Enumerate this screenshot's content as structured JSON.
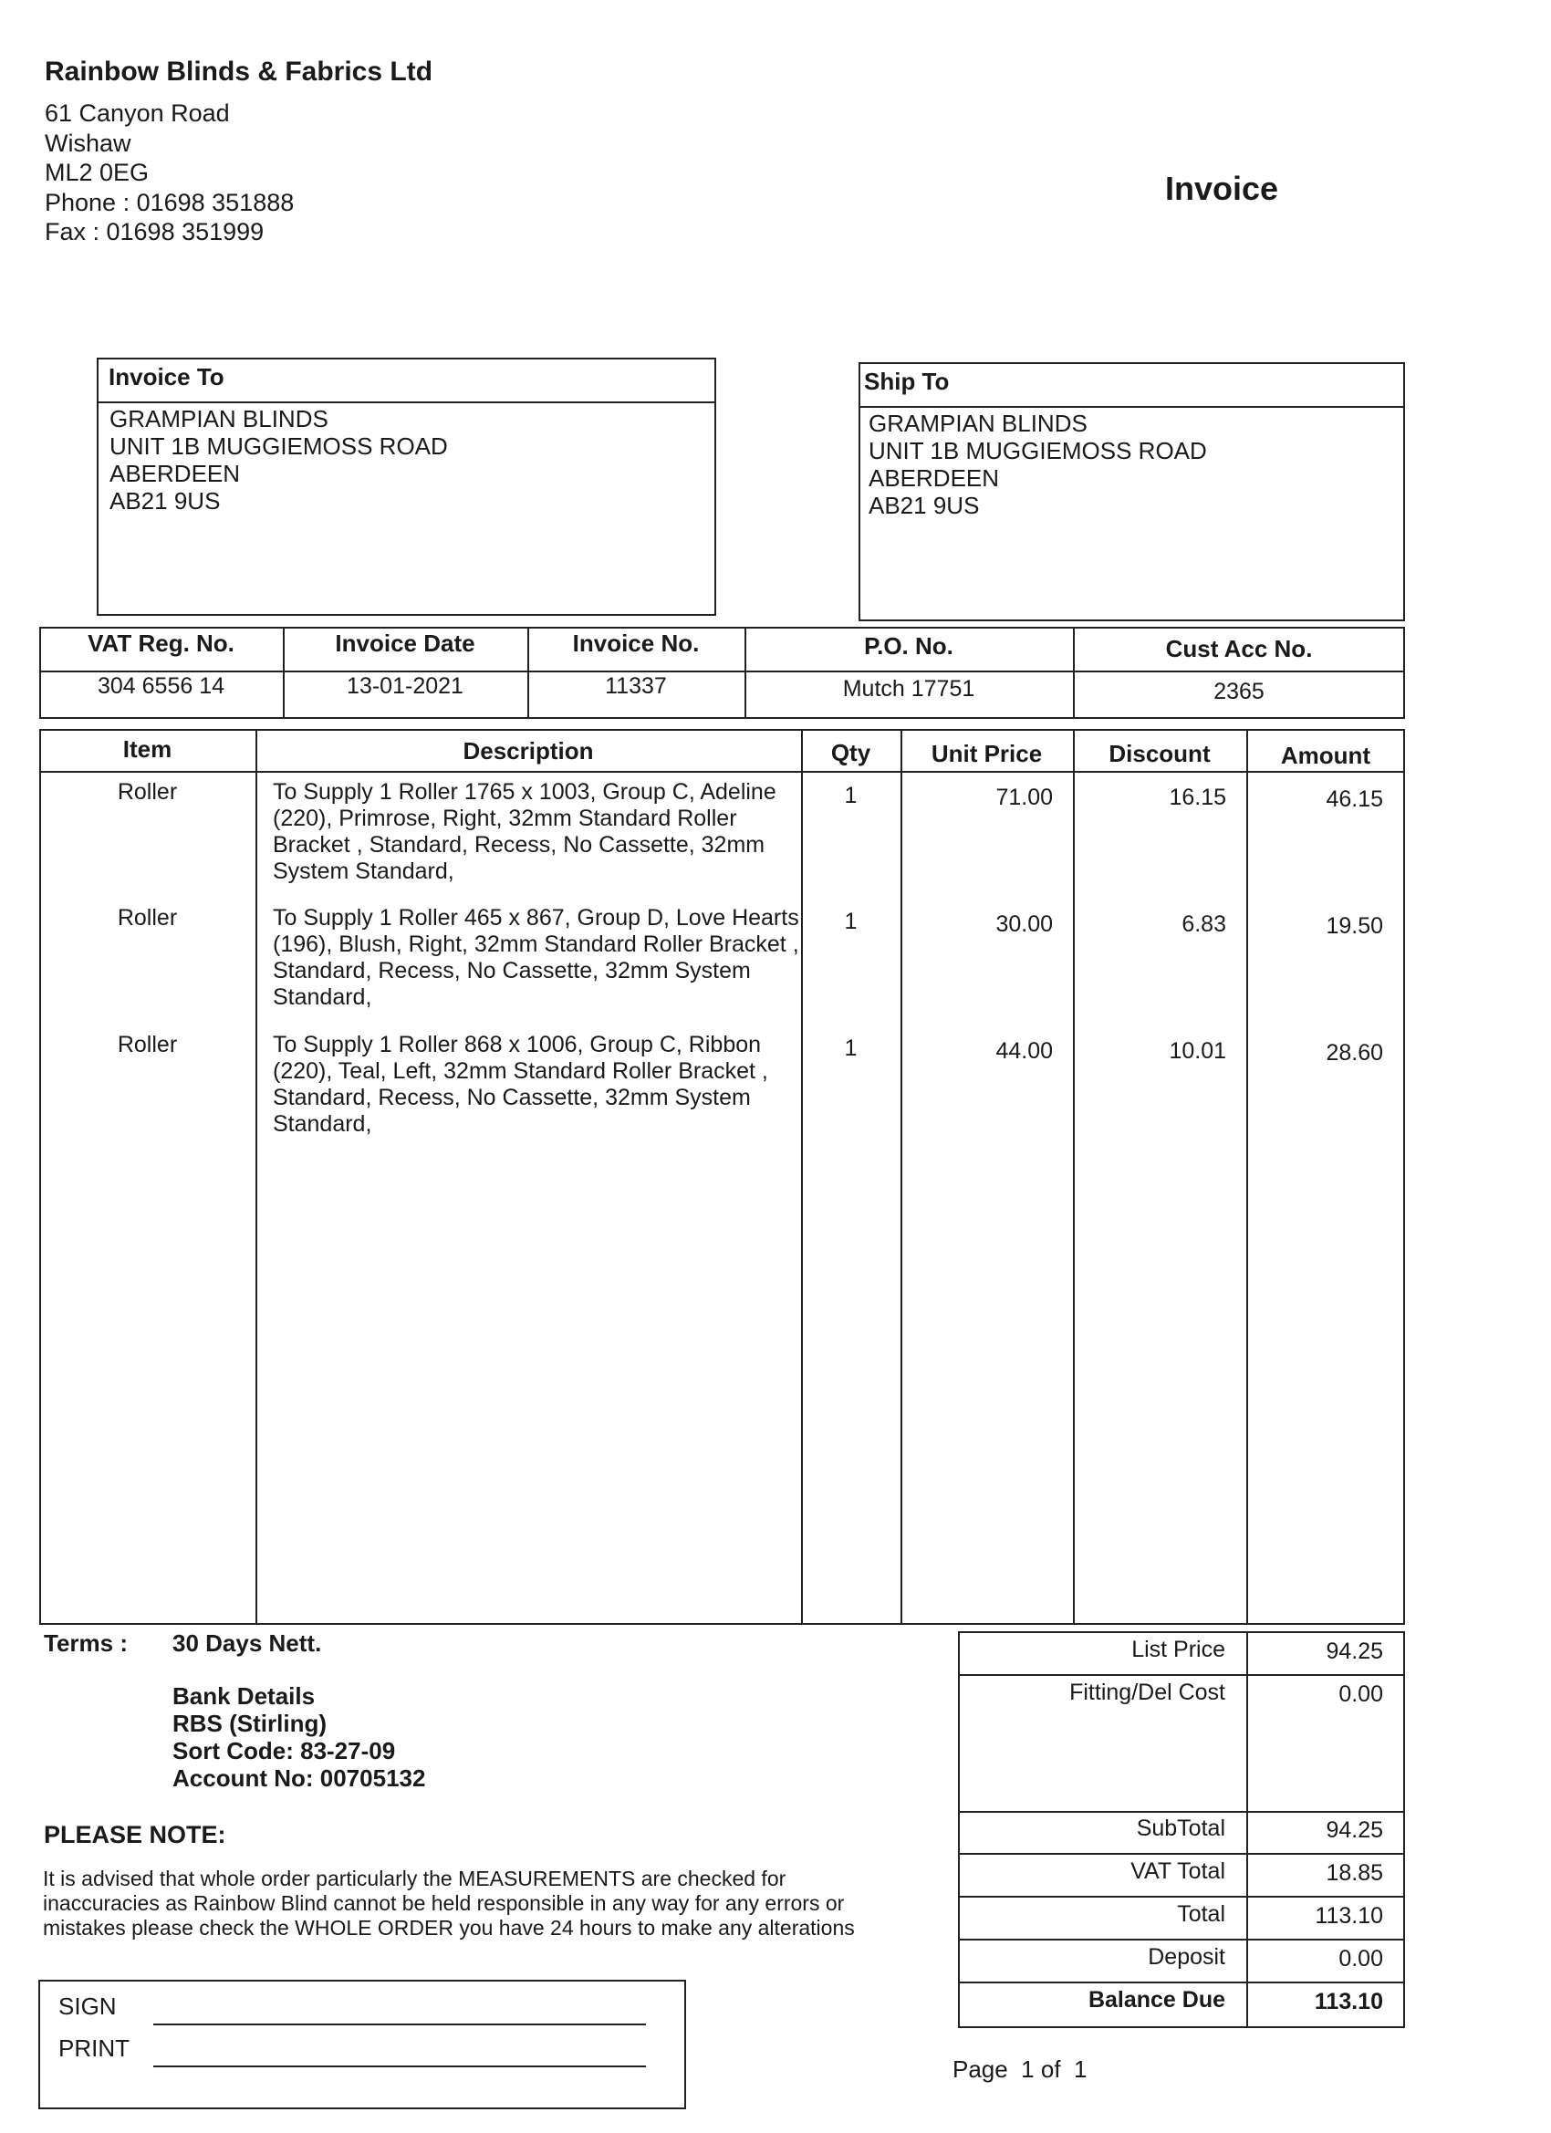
{
  "company": {
    "name": "Rainbow Blinds & Fabrics Ltd",
    "address": [
      "61 Canyon Road",
      "Wishaw",
      "ML2 0EG"
    ],
    "phone": "Phone : 01698 351888",
    "fax": "Fax : 01698 351999"
  },
  "doc_title": "Invoice",
  "invoice_to": {
    "label": "Invoice To",
    "lines": [
      "GRAMPIAN BLINDS",
      "UNIT 1B MUGGIEMOSS ROAD",
      "ABERDEEN",
      "AB21 9US"
    ]
  },
  "ship_to": {
    "label": "Ship To",
    "lines": [
      "GRAMPIAN BLINDS",
      "UNIT 1B MUGGIEMOSS ROAD",
      "ABERDEEN",
      "AB21 9US"
    ]
  },
  "info": {
    "headers": [
      "VAT Reg. No.",
      "Invoice Date",
      "Invoice No.",
      "P.O. No.",
      "Cust Acc No."
    ],
    "values": [
      "304 6556 14",
      "13-01-2021",
      "11337",
      "Mutch 17751",
      "2365"
    ]
  },
  "items": {
    "headers": [
      "Item",
      "Description",
      "Qty",
      "Unit Price",
      "Discount",
      "Amount"
    ],
    "rows": [
      {
        "item": "Roller",
        "description": "To Supply 1 Roller  1765 x 1003, Group C, Adeline (220), Primrose, Right, 32mm Standard Roller Bracket , Standard, Recess, No Cassette, 32mm System Standard,",
        "qty": "1",
        "unit_price": "71.00",
        "discount": "16.15",
        "amount": "46.15"
      },
      {
        "item": "Roller",
        "description": "To Supply 1 Roller  465 x 867, Group D, Love Hearts (196), Blush, Right, 32mm Standard Roller Bracket , Standard, Recess, No Cassette, 32mm System Standard,",
        "qty": "1",
        "unit_price": "30.00",
        "discount": "6.83",
        "amount": "19.50"
      },
      {
        "item": "Roller",
        "description": "To Supply 1 Roller  868 x 1006, Group C, Ribbon (220), Teal, Left, 32mm Standard Roller Bracket , Standard, Recess, No Cassette, 32mm System Standard,",
        "qty": "1",
        "unit_price": "44.00",
        "discount": "10.01",
        "amount": "28.60"
      }
    ]
  },
  "terms": {
    "label": "Terms :",
    "value": "30 Days Nett."
  },
  "bank": [
    "Bank Details",
    "RBS (Stirling)",
    "Sort Code: 83-27-09",
    "Account No: 00705132"
  ],
  "note": {
    "heading": "PLEASE NOTE:",
    "lines": [
      "It is advised that whole order particularly the MEASUREMENTS are checked for",
      "inaccuracies as Rainbow Blind cannot be held responsible in any way for any errors or",
      "mistakes please check the WHOLE ORDER you have 24 hours to make any alterations"
    ]
  },
  "signature": {
    "sign": "SIGN",
    "print": "PRINT"
  },
  "totals": [
    {
      "label": "List Price",
      "value": "94.25"
    },
    {
      "label": "Fitting/Del Cost",
      "value": "0.00"
    },
    {
      "label": "SubTotal",
      "value": "94.25"
    },
    {
      "label": "VAT Total",
      "value": "18.85"
    },
    {
      "label": "Total",
      "value": "113.10"
    },
    {
      "label": "Deposit",
      "value": "0.00"
    },
    {
      "label": "Balance Due",
      "value": "113.10"
    }
  ],
  "page": "Page  1 of  1"
}
